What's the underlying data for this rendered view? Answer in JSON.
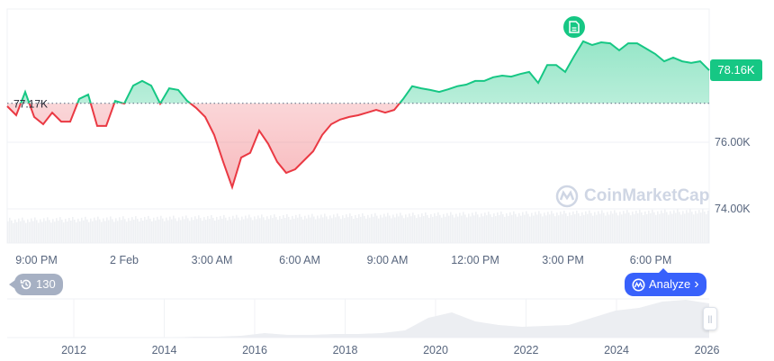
{
  "chart_data": {
    "type": "line",
    "title": "",
    "start_time": "20:00",
    "interval_minutes": 18.46,
    "baseline": 77.17,
    "baseline_label": "77.17K",
    "current_label": "78.16K",
    "ylim": [
      73.4,
      80.2
    ],
    "yticks": [
      {
        "v": 76,
        "label": "76.00K"
      },
      {
        "v": 74,
        "label": "74.00K"
      }
    ],
    "xticks": [
      {
        "h": 1,
        "label": "9:00 PM"
      },
      {
        "h": 4,
        "label": "2 Feb"
      },
      {
        "h": 7,
        "label": "3:00 AM"
      },
      {
        "h": 10,
        "label": "6:00 AM"
      },
      {
        "h": 13,
        "label": "9:00 AM"
      },
      {
        "h": 16,
        "label": "12:00 PM"
      },
      {
        "h": 19,
        "label": "3:00 PM"
      },
      {
        "h": 22,
        "label": "6:00 PM"
      }
    ],
    "prices": [
      77.08,
      76.81,
      77.51,
      76.76,
      76.54,
      76.89,
      76.62,
      76.62,
      77.3,
      77.43,
      76.49,
      76.49,
      77.24,
      77.16,
      77.7,
      77.84,
      77.7,
      77.16,
      77.62,
      77.57,
      77.24,
      77.03,
      76.76,
      76.22,
      75.41,
      74.65,
      75.54,
      75.68,
      76.35,
      75.95,
      75.41,
      75.08,
      75.19,
      75.46,
      75.73,
      76.22,
      76.54,
      76.68,
      76.76,
      76.81,
      76.89,
      76.97,
      76.89,
      76.97,
      77.3,
      77.68,
      77.62,
      77.57,
      77.51,
      77.59,
      77.68,
      77.73,
      77.84,
      77.84,
      77.95,
      78.0,
      77.97,
      78.05,
      78.11,
      77.78,
      78.32,
      78.32,
      78.11,
      78.59,
      79.03,
      78.92,
      79.0,
      78.97,
      78.76,
      78.97,
      78.97,
      78.81,
      78.65,
      78.43,
      78.54,
      78.43,
      78.38,
      78.43,
      78.16
    ],
    "up_color": "#16c784",
    "down_color": "#ea3943",
    "navigator": {
      "xticks": [
        "2012",
        "2014",
        "2016",
        "2018",
        "2020",
        "2022",
        "2024",
        "2026"
      ]
    }
  },
  "controls": {
    "history_count": "130",
    "analyze_label": "Analyze",
    "analyze_chevron": "›"
  },
  "watermark": "CoinMarketCap"
}
